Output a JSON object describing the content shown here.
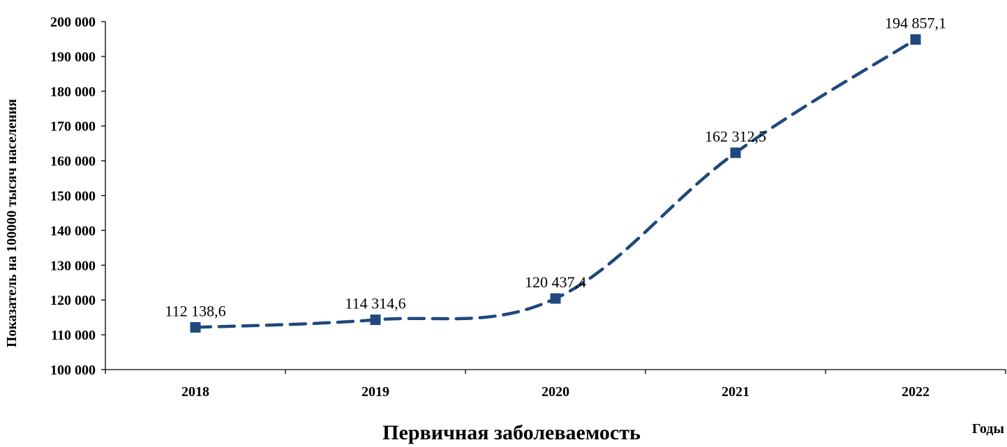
{
  "chart_data": {
    "type": "line",
    "title": "",
    "xlabel": "Годы",
    "ylabel": "Показатель на 100000 тысяч населения",
    "categories": [
      "2018",
      "2019",
      "2020",
      "2021",
      "2022"
    ],
    "series": [
      {
        "name": "Первичная заболеваемость",
        "values": [
          112138.6,
          114314.6,
          120437.4,
          162312.5,
          194857.1
        ],
        "labels": [
          "112 138,6",
          "114 314,6",
          "120 437,4",
          "162 312,5",
          "194 857,1"
        ],
        "color": "#1f497d",
        "line_style": "dashed",
        "marker": "square"
      }
    ],
    "ylim": [
      100000,
      200000
    ],
    "yticks": [
      100000,
      110000,
      120000,
      130000,
      140000,
      150000,
      160000,
      170000,
      180000,
      190000,
      200000
    ],
    "ytick_labels": [
      "100 000",
      "110 000",
      "120 000",
      "130 000",
      "140 000",
      "150 000",
      "160 000",
      "170 000",
      "180 000",
      "190 000",
      "200 000"
    ],
    "grid": false,
    "legend": "bottom"
  }
}
